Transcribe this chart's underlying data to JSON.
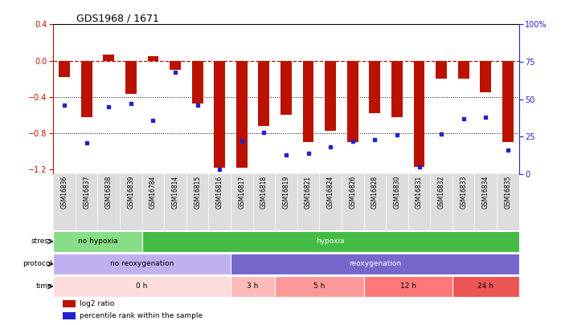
{
  "title": "GDS1968 / 1671",
  "samples": [
    "GSM16836",
    "GSM16837",
    "GSM16838",
    "GSM16839",
    "GSM16784",
    "GSM16814",
    "GSM16815",
    "GSM16816",
    "GSM16817",
    "GSM16818",
    "GSM16819",
    "GSM16821",
    "GSM16824",
    "GSM16826",
    "GSM16828",
    "GSM16830",
    "GSM16831",
    "GSM16832",
    "GSM16833",
    "GSM16834",
    "GSM16835"
  ],
  "log2_ratio": [
    -0.18,
    -0.62,
    0.07,
    -0.37,
    0.05,
    -0.1,
    -0.47,
    -1.18,
    -1.18,
    -0.72,
    -0.6,
    -0.9,
    -0.77,
    -0.9,
    -0.58,
    -0.62,
    -1.17,
    -0.2,
    -0.2,
    -0.35,
    -0.9
  ],
  "percentile": [
    46,
    21,
    45,
    47,
    36,
    68,
    46,
    3,
    22,
    28,
    13,
    14,
    18,
    22,
    23,
    26,
    5,
    27,
    37,
    38,
    16
  ],
  "ylim_left": [
    -1.25,
    0.4
  ],
  "ylim_right": [
    0,
    100
  ],
  "yticks_left": [
    -1.2,
    -0.8,
    -0.4,
    0.0,
    0.4
  ],
  "yticks_right": [
    0,
    25,
    50,
    75,
    100
  ],
  "ytick_right_labels": [
    "0",
    "25",
    "50",
    "75",
    "100%"
  ],
  "stress_groups": [
    {
      "label": "no hypoxia",
      "start": 0,
      "end": 4,
      "color": "#88dd88"
    },
    {
      "label": "hypoxia",
      "start": 4,
      "end": 21,
      "color": "#44bb44"
    }
  ],
  "protocol_groups": [
    {
      "label": "no reoxygenation",
      "start": 0,
      "end": 8,
      "color": "#c0b0f0"
    },
    {
      "label": "reoxygenation",
      "start": 8,
      "end": 21,
      "color": "#7766cc"
    }
  ],
  "time_groups": [
    {
      "label": "0 h",
      "start": 0,
      "end": 8,
      "color": "#ffdddd"
    },
    {
      "label": "3 h",
      "start": 8,
      "end": 10,
      "color": "#ffbbbb"
    },
    {
      "label": "5 h",
      "start": 10,
      "end": 14,
      "color": "#ff9999"
    },
    {
      "label": "12 h",
      "start": 14,
      "end": 18,
      "color": "#ff7777"
    },
    {
      "label": "24 h",
      "start": 18,
      "end": 21,
      "color": "#ee5555"
    }
  ],
  "bar_color": "#bb1100",
  "dot_color": "#2222cc",
  "legend_bar_label": "log2 ratio",
  "legend_dot_label": "percentile rank within the sample",
  "background_color": "#ffffff",
  "plot_bg_color": "#ffffff",
  "xticklabel_bg": "#dddddd"
}
